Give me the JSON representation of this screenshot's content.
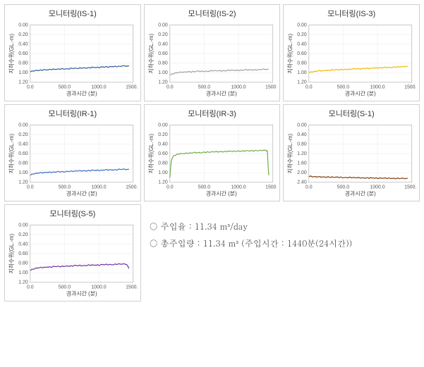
{
  "chart_common": {
    "xlabel": "경과시간 (분)",
    "ylabel": "지하수위(GL.-m)",
    "xlim": [
      0,
      1500
    ],
    "xticks": [
      0,
      500,
      1000,
      1500
    ],
    "xtick_labels": [
      "0.0",
      "500.0",
      "1000.0",
      "1500.0"
    ],
    "title_fontsize": 11,
    "label_fontsize": 8,
    "tick_fontsize": 7,
    "background_color": "#ffffff",
    "grid_color": "#e8e8e8",
    "axis_color": "#bbbbbb",
    "line_width": 1.2
  },
  "charts": [
    {
      "id": "IS-1",
      "title": "모니터링(IS-1)",
      "color": "#2e5c9a",
      "ylim": [
        1.2,
        0.0
      ],
      "yticks": [
        0.0,
        0.2,
        0.4,
        0.6,
        0.8,
        1.0,
        1.2
      ],
      "ytick_labels": [
        "0.00",
        "0.20",
        "0.40",
        "0.60",
        "0.80",
        "1.00",
        "1.20"
      ],
      "data": [
        [
          0,
          0.98
        ],
        [
          50,
          0.96
        ],
        [
          100,
          0.95
        ],
        [
          150,
          0.95
        ],
        [
          200,
          0.94
        ],
        [
          250,
          0.94
        ],
        [
          300,
          0.93
        ],
        [
          350,
          0.93
        ],
        [
          400,
          0.93
        ],
        [
          450,
          0.92
        ],
        [
          500,
          0.92
        ],
        [
          550,
          0.92
        ],
        [
          600,
          0.91
        ],
        [
          650,
          0.91
        ],
        [
          700,
          0.91
        ],
        [
          750,
          0.9
        ],
        [
          800,
          0.9
        ],
        [
          850,
          0.9
        ],
        [
          900,
          0.89
        ],
        [
          950,
          0.89
        ],
        [
          1000,
          0.89
        ],
        [
          1050,
          0.88
        ],
        [
          1100,
          0.88
        ],
        [
          1150,
          0.88
        ],
        [
          1200,
          0.87
        ],
        [
          1250,
          0.87
        ],
        [
          1300,
          0.87
        ],
        [
          1350,
          0.86
        ],
        [
          1400,
          0.86
        ],
        [
          1440,
          0.86
        ]
      ]
    },
    {
      "id": "IS-2",
      "title": "모니터링(IS-2)",
      "color": "#a0a0a0",
      "ylim": [
        1.2,
        0.0
      ],
      "yticks": [
        0.0,
        0.2,
        0.4,
        0.6,
        0.8,
        1.0,
        1.2
      ],
      "ytick_labels": [
        "0.00",
        "0.20",
        "0.40",
        "0.60",
        "0.80",
        "1.00",
        "1.20"
      ],
      "data": [
        [
          0,
          1.05
        ],
        [
          50,
          1.02
        ],
        [
          100,
          1.0
        ],
        [
          150,
          0.99
        ],
        [
          200,
          0.99
        ],
        [
          250,
          0.98
        ],
        [
          300,
          0.98
        ],
        [
          350,
          0.98
        ],
        [
          400,
          0.97
        ],
        [
          450,
          0.97
        ],
        [
          500,
          0.97
        ],
        [
          550,
          0.97
        ],
        [
          600,
          0.96
        ],
        [
          650,
          0.96
        ],
        [
          700,
          0.96
        ],
        [
          750,
          0.96
        ],
        [
          800,
          0.96
        ],
        [
          850,
          0.95
        ],
        [
          900,
          0.95
        ],
        [
          950,
          0.95
        ],
        [
          1000,
          0.95
        ],
        [
          1050,
          0.95
        ],
        [
          1100,
          0.94
        ],
        [
          1150,
          0.94
        ],
        [
          1200,
          0.94
        ],
        [
          1250,
          0.94
        ],
        [
          1300,
          0.94
        ],
        [
          1350,
          0.93
        ],
        [
          1400,
          0.93
        ],
        [
          1440,
          0.93
        ]
      ]
    },
    {
      "id": "IS-3",
      "title": "모니터링(IS-3)",
      "color": "#f0b800",
      "ylim": [
        1.2,
        0.0
      ],
      "yticks": [
        0.0,
        0.2,
        0.4,
        0.6,
        0.8,
        1.0,
        1.2
      ],
      "ytick_labels": [
        "0.00",
        "0.20",
        "0.40",
        "0.60",
        "0.80",
        "1.00",
        "1.20"
      ],
      "data": [
        [
          0,
          1.0
        ],
        [
          50,
          0.98
        ],
        [
          100,
          0.97
        ],
        [
          150,
          0.96
        ],
        [
          200,
          0.96
        ],
        [
          250,
          0.95
        ],
        [
          300,
          0.95
        ],
        [
          350,
          0.94
        ],
        [
          400,
          0.94
        ],
        [
          450,
          0.94
        ],
        [
          500,
          0.93
        ],
        [
          550,
          0.93
        ],
        [
          600,
          0.93
        ],
        [
          650,
          0.92
        ],
        [
          700,
          0.92
        ],
        [
          750,
          0.92
        ],
        [
          800,
          0.91
        ],
        [
          850,
          0.91
        ],
        [
          900,
          0.91
        ],
        [
          950,
          0.9
        ],
        [
          1000,
          0.9
        ],
        [
          1050,
          0.9
        ],
        [
          1100,
          0.89
        ],
        [
          1150,
          0.89
        ],
        [
          1200,
          0.89
        ],
        [
          1250,
          0.88
        ],
        [
          1300,
          0.88
        ],
        [
          1350,
          0.88
        ],
        [
          1400,
          0.87
        ],
        [
          1440,
          0.87
        ]
      ]
    },
    {
      "id": "IR-1",
      "title": "모니터링(IR-1)",
      "color": "#3a6fc4",
      "ylim": [
        1.2,
        0.0
      ],
      "yticks": [
        0.0,
        0.2,
        0.4,
        0.6,
        0.8,
        1.0,
        1.2
      ],
      "ytick_labels": [
        "0.00",
        "0.20",
        "0.40",
        "0.60",
        "0.80",
        "1.00",
        "1.20"
      ],
      "data": [
        [
          0,
          1.05
        ],
        [
          50,
          1.02
        ],
        [
          100,
          1.01
        ],
        [
          150,
          1.0
        ],
        [
          200,
          1.0
        ],
        [
          250,
          0.99
        ],
        [
          300,
          0.99
        ],
        [
          350,
          0.99
        ],
        [
          400,
          0.98
        ],
        [
          450,
          0.98
        ],
        [
          500,
          0.98
        ],
        [
          550,
          0.97
        ],
        [
          600,
          0.97
        ],
        [
          650,
          0.97
        ],
        [
          700,
          0.96
        ],
        [
          750,
          0.96
        ],
        [
          800,
          0.96
        ],
        [
          850,
          0.96
        ],
        [
          900,
          0.95
        ],
        [
          950,
          0.95
        ],
        [
          1000,
          0.95
        ],
        [
          1050,
          0.95
        ],
        [
          1100,
          0.94
        ],
        [
          1150,
          0.94
        ],
        [
          1200,
          0.94
        ],
        [
          1250,
          0.94
        ],
        [
          1300,
          0.93
        ],
        [
          1350,
          0.93
        ],
        [
          1400,
          0.93
        ],
        [
          1440,
          0.93
        ]
      ]
    },
    {
      "id": "IR-3",
      "title": "모니터링(IR-3)",
      "color": "#70ad47",
      "ylim": [
        1.2,
        0.0
      ],
      "yticks": [
        0.0,
        0.2,
        0.4,
        0.6,
        0.8,
        1.0,
        1.2
      ],
      "ytick_labels": [
        "0.00",
        "0.20",
        "0.40",
        "0.60",
        "0.80",
        "1.00",
        "1.20"
      ],
      "data": [
        [
          0,
          1.1
        ],
        [
          20,
          0.75
        ],
        [
          50,
          0.65
        ],
        [
          100,
          0.62
        ],
        [
          150,
          0.6
        ],
        [
          200,
          0.6
        ],
        [
          250,
          0.59
        ],
        [
          300,
          0.59
        ],
        [
          350,
          0.58
        ],
        [
          400,
          0.58
        ],
        [
          450,
          0.58
        ],
        [
          500,
          0.57
        ],
        [
          550,
          0.57
        ],
        [
          600,
          0.57
        ],
        [
          650,
          0.56
        ],
        [
          700,
          0.56
        ],
        [
          750,
          0.56
        ],
        [
          800,
          0.56
        ],
        [
          850,
          0.55
        ],
        [
          900,
          0.55
        ],
        [
          950,
          0.55
        ],
        [
          1000,
          0.55
        ],
        [
          1050,
          0.55
        ],
        [
          1100,
          0.54
        ],
        [
          1150,
          0.54
        ],
        [
          1200,
          0.54
        ],
        [
          1250,
          0.54
        ],
        [
          1300,
          0.54
        ],
        [
          1350,
          0.53
        ],
        [
          1400,
          0.53
        ],
        [
          1420,
          0.55
        ],
        [
          1440,
          1.05
        ]
      ]
    },
    {
      "id": "S-1",
      "title": "모니터링(S-1)",
      "color": "#843c0c",
      "ylim": [
        2.4,
        0.0
      ],
      "yticks": [
        0.0,
        0.4,
        0.8,
        1.2,
        1.6,
        2.0,
        2.4
      ],
      "ytick_labels": [
        "0.00",
        "0.40",
        "0.80",
        "1.20",
        "1.60",
        "2.00",
        "2.40"
      ],
      "data": [
        [
          0,
          2.15
        ],
        [
          50,
          2.16
        ],
        [
          100,
          2.17
        ],
        [
          150,
          2.17
        ],
        [
          200,
          2.18
        ],
        [
          250,
          2.18
        ],
        [
          300,
          2.18
        ],
        [
          350,
          2.19
        ],
        [
          400,
          2.19
        ],
        [
          450,
          2.19
        ],
        [
          500,
          2.2
        ],
        [
          550,
          2.2
        ],
        [
          600,
          2.2
        ],
        [
          650,
          2.21
        ],
        [
          700,
          2.21
        ],
        [
          750,
          2.21
        ],
        [
          800,
          2.22
        ],
        [
          850,
          2.22
        ],
        [
          900,
          2.22
        ],
        [
          950,
          2.22
        ],
        [
          1000,
          2.23
        ],
        [
          1050,
          2.23
        ],
        [
          1100,
          2.23
        ],
        [
          1150,
          2.23
        ],
        [
          1200,
          2.23
        ],
        [
          1250,
          2.24
        ],
        [
          1300,
          2.24
        ],
        [
          1350,
          2.24
        ],
        [
          1400,
          2.24
        ],
        [
          1440,
          2.24
        ]
      ]
    },
    {
      "id": "S-5",
      "title": "모니터링(S-5)",
      "color": "#7030a0",
      "ylim": [
        1.2,
        0.0
      ],
      "yticks": [
        0.0,
        0.2,
        0.4,
        0.6,
        0.8,
        1.0,
        1.2
      ],
      "ytick_labels": [
        "0.00",
        "0.20",
        "0.40",
        "0.60",
        "0.80",
        "1.00",
        "1.20"
      ],
      "data": [
        [
          0,
          0.95
        ],
        [
          50,
          0.92
        ],
        [
          100,
          0.9
        ],
        [
          150,
          0.89
        ],
        [
          200,
          0.89
        ],
        [
          250,
          0.88
        ],
        [
          300,
          0.88
        ],
        [
          350,
          0.87
        ],
        [
          400,
          0.87
        ],
        [
          450,
          0.87
        ],
        [
          500,
          0.86
        ],
        [
          550,
          0.86
        ],
        [
          600,
          0.86
        ],
        [
          650,
          0.85
        ],
        [
          700,
          0.85
        ],
        [
          750,
          0.85
        ],
        [
          800,
          0.85
        ],
        [
          850,
          0.84
        ],
        [
          900,
          0.84
        ],
        [
          950,
          0.84
        ],
        [
          1000,
          0.84
        ],
        [
          1050,
          0.83
        ],
        [
          1100,
          0.83
        ],
        [
          1150,
          0.83
        ],
        [
          1200,
          0.83
        ],
        [
          1250,
          0.82
        ],
        [
          1300,
          0.82
        ],
        [
          1350,
          0.82
        ],
        [
          1400,
          0.82
        ],
        [
          1420,
          0.85
        ],
        [
          1440,
          0.92
        ]
      ]
    }
  ],
  "info": {
    "line1": "○  주입율 : 11.34 m³/day",
    "line2": "○  총주입량 : 11.34 m³ (주입시간 : 1440분(24시간))"
  }
}
